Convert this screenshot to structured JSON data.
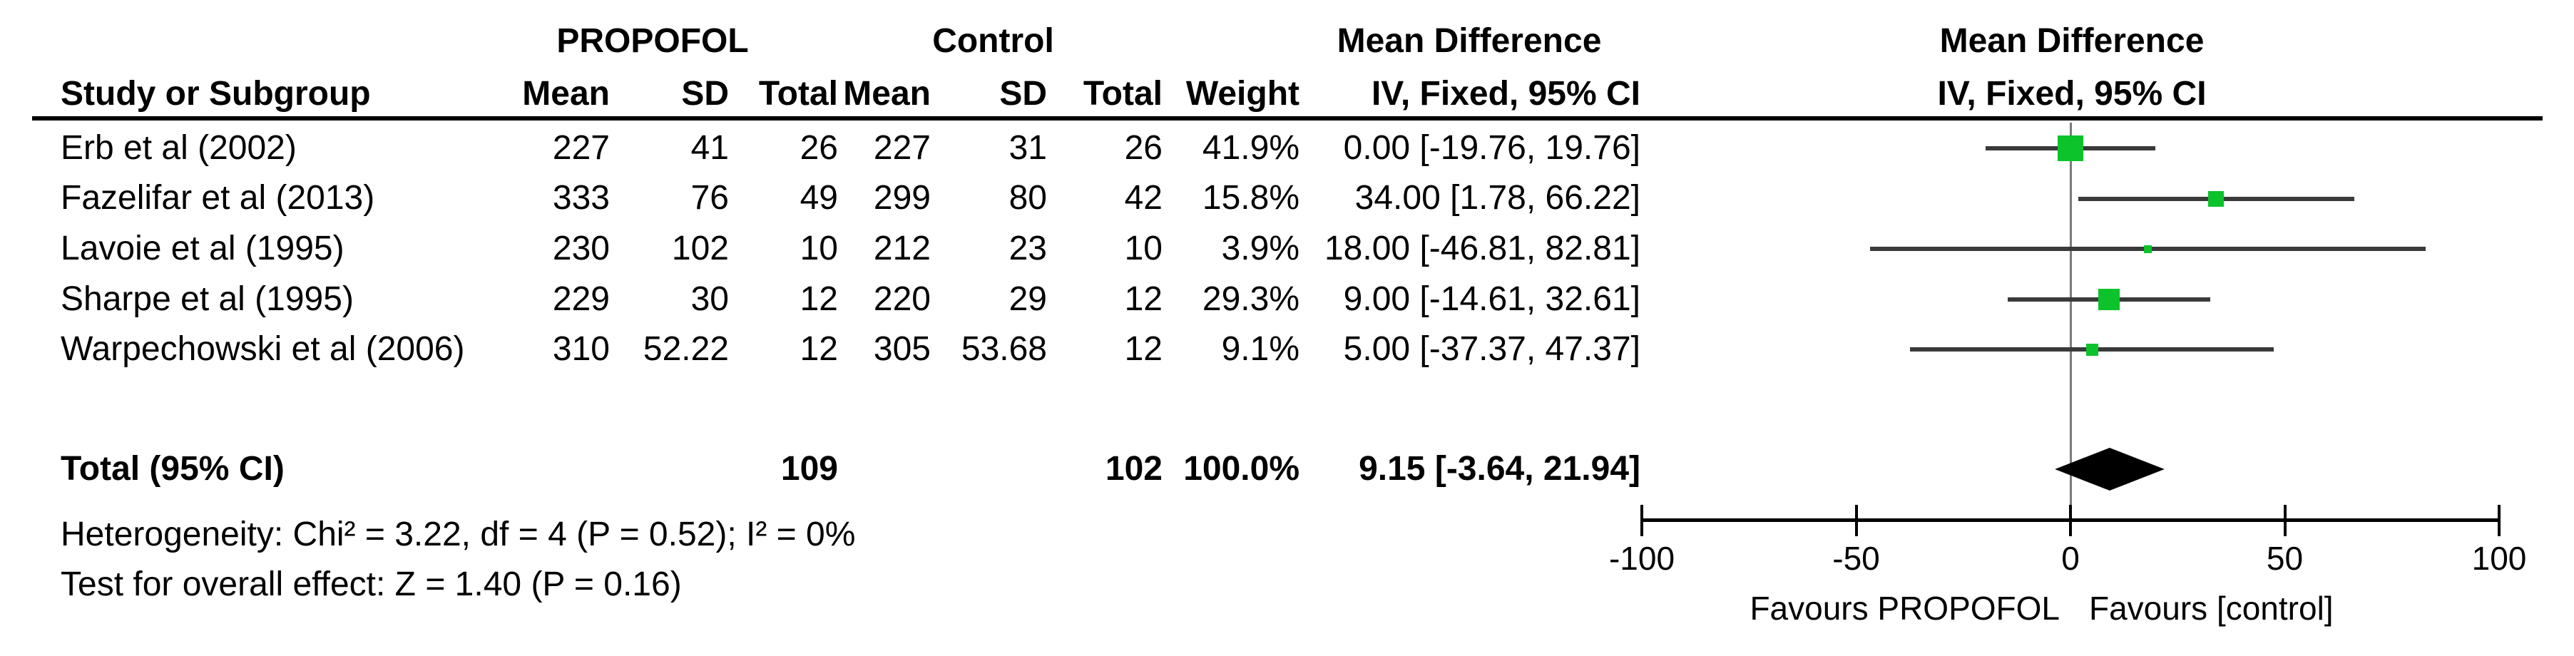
{
  "table": {
    "group_propofol": "PROPOFOL",
    "group_control": "Control",
    "group_md_text": "Mean Difference",
    "group_md_plot": "Mean Difference",
    "headers": {
      "study": "Study or Subgroup",
      "mean1": "Mean",
      "sd1": "SD",
      "total1": "Total",
      "mean2": "Mean",
      "sd2": "SD",
      "total2": "Total",
      "weight": "Weight",
      "ci": "IV, Fixed, 95% CI",
      "ci_plot": "IV, Fixed, 95% CI"
    },
    "rows": [
      {
        "study": "Erb et al (2002)",
        "mean1": "227",
        "sd1": "41",
        "total1": "26",
        "mean2": "227",
        "sd2": "31",
        "total2": "26",
        "weight": "41.9%",
        "ci": "0.00 [-19.76, 19.76]"
      },
      {
        "study": "Fazelifar et al (2013)",
        "mean1": "333",
        "sd1": "76",
        "total1": "49",
        "mean2": "299",
        "sd2": "80",
        "total2": "42",
        "weight": "15.8%",
        "ci": "34.00 [1.78, 66.22]"
      },
      {
        "study": "Lavoie et al (1995)",
        "mean1": "230",
        "sd1": "102",
        "total1": "10",
        "mean2": "212",
        "sd2": "23",
        "total2": "10",
        "weight": "3.9%",
        "ci": "18.00 [-46.81, 82.81]"
      },
      {
        "study": "Sharpe et al (1995)",
        "mean1": "229",
        "sd1": "30",
        "total1": "12",
        "mean2": "220",
        "sd2": "29",
        "total2": "12",
        "weight": "29.3%",
        "ci": "9.00 [-14.61, 32.61]"
      },
      {
        "study": "Warpechowski et al (2006)",
        "mean1": "310",
        "sd1": "52.22",
        "total1": "12",
        "mean2": "305",
        "sd2": "53.68",
        "total2": "12",
        "weight": "9.1%",
        "ci": "5.00 [-37.37, 47.37]"
      }
    ],
    "total_row": {
      "label": "Total (95% CI)",
      "total1": "109",
      "total2": "102",
      "weight": "100.0%",
      "ci": "9.15 [-3.64, 21.94]"
    }
  },
  "footer": {
    "heterogeneity": "Heterogeneity: Chi² = 3.22, df = 4 (P = 0.52); I² = 0%",
    "overall_effect": "Test for overall effect: Z = 1.40 (P = 0.16)"
  },
  "axis": {
    "tick_labels": [
      "-100",
      "-50",
      "0",
      "50",
      "100"
    ],
    "favours_left": "Favours PROPOFOL",
    "favours_right": "Favours [control]"
  },
  "colors": {
    "square_green": "#0cc32c",
    "diamond_black": "#000000",
    "ci_line": "#3a3a3a",
    "zero_line": "#7a7a7a",
    "axis_black": "#000000"
  },
  "chart_data": {
    "type": "forest",
    "effect_measure": "Mean Difference",
    "model": "IV, Fixed, 95% CI",
    "axis": {
      "min": -100,
      "max": 100,
      "ticks": [
        -100,
        -50,
        0,
        50,
        100
      ]
    },
    "studies": [
      {
        "name": "Erb et al (2002)",
        "propofol": {
          "mean": 227,
          "sd": 41,
          "total": 26
        },
        "control": {
          "mean": 227,
          "sd": 31,
          "total": 26
        },
        "weight_pct": 41.9,
        "md": 0.0,
        "ci_low": -19.76,
        "ci_high": 19.76
      },
      {
        "name": "Fazelifar et al (2013)",
        "propofol": {
          "mean": 333,
          "sd": 76,
          "total": 49
        },
        "control": {
          "mean": 299,
          "sd": 80,
          "total": 42
        },
        "weight_pct": 15.8,
        "md": 34.0,
        "ci_low": 1.78,
        "ci_high": 66.22
      },
      {
        "name": "Lavoie et al (1995)",
        "propofol": {
          "mean": 230,
          "sd": 102,
          "total": 10
        },
        "control": {
          "mean": 212,
          "sd": 23,
          "total": 10
        },
        "weight_pct": 3.9,
        "md": 18.0,
        "ci_low": -46.81,
        "ci_high": 82.81
      },
      {
        "name": "Sharpe et al (1995)",
        "propofol": {
          "mean": 229,
          "sd": 30,
          "total": 12
        },
        "control": {
          "mean": 220,
          "sd": 29,
          "total": 12
        },
        "weight_pct": 29.3,
        "md": 9.0,
        "ci_low": -14.61,
        "ci_high": 32.61
      },
      {
        "name": "Warpechowski et al (2006)",
        "propofol": {
          "mean": 310,
          "sd": 52.22,
          "total": 12
        },
        "control": {
          "mean": 305,
          "sd": 53.68,
          "total": 12
        },
        "weight_pct": 9.1,
        "md": 5.0,
        "ci_low": -37.37,
        "ci_high": 47.37
      }
    ],
    "total": {
      "label": "Total (95% CI)",
      "total_propofol": 109,
      "total_control": 102,
      "weight_pct": 100.0,
      "md": 9.15,
      "ci_low": -3.64,
      "ci_high": 21.94
    },
    "heterogeneity": {
      "chi2": 3.22,
      "df": 4,
      "p": 0.52,
      "i2_pct": 0
    },
    "overall_effect": {
      "z": 1.4,
      "p": 0.16
    }
  }
}
